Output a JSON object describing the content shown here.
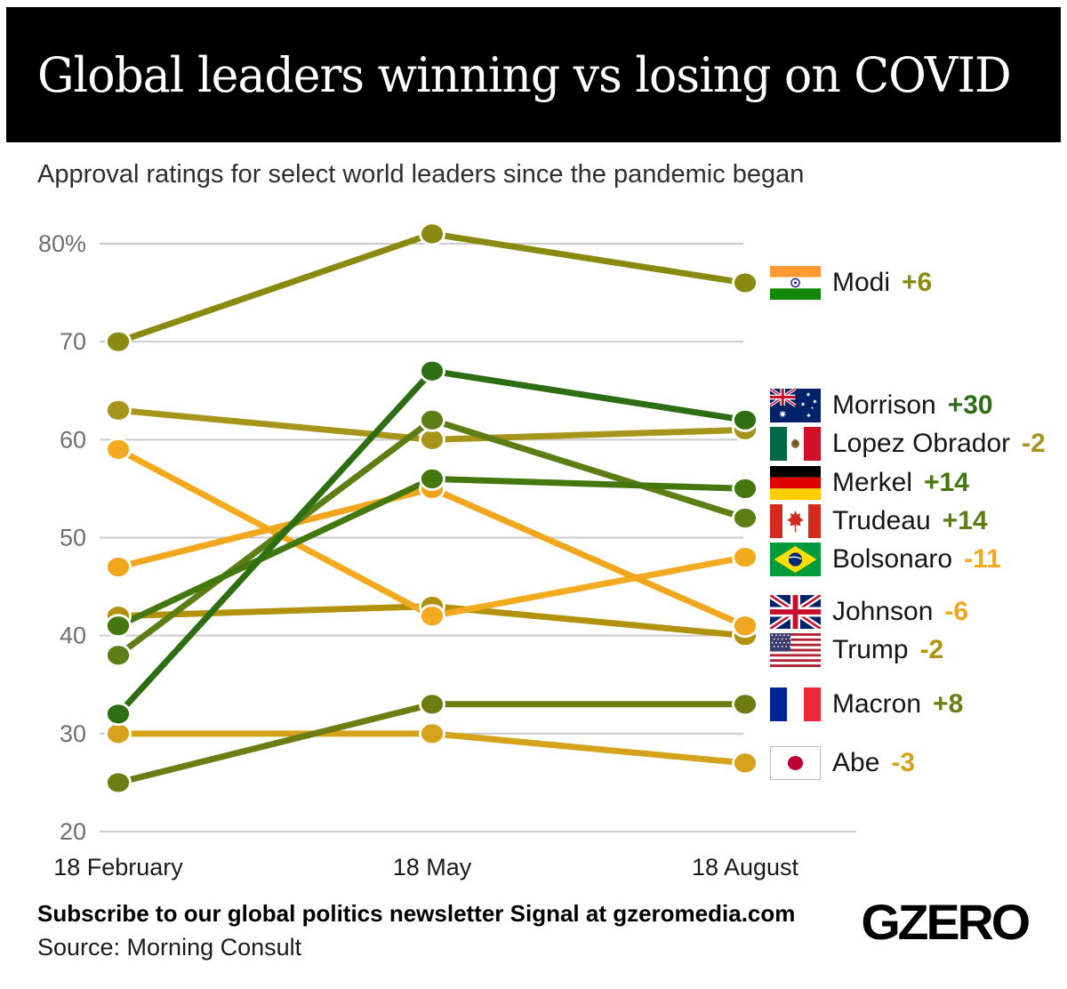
{
  "header": {
    "title": "Global leaders winning vs losing on COVID"
  },
  "subtitle": "Approval ratings for select world leaders since the pandemic began",
  "chart_data": {
    "type": "line",
    "title": "Global leaders winning vs losing on COVID",
    "subtitle": "Approval ratings for select world leaders since the pandemic began",
    "x": [
      "18 February",
      "18 May",
      "18 August"
    ],
    "ylim": [
      20,
      83
    ],
    "yticks": [
      80,
      70,
      60,
      50,
      40,
      30,
      20
    ],
    "ytick_labels": [
      "80%",
      "70",
      "60",
      "50",
      "40",
      "30",
      "20"
    ],
    "grid": true,
    "legend_position": "right",
    "series": [
      {
        "name": "Modi",
        "flag": "india",
        "values": [
          70,
          81,
          76
        ],
        "change": "+6",
        "color": "#8A8A10",
        "zorder": 6
      },
      {
        "name": "Morrison",
        "flag": "australia",
        "values": [
          32,
          67,
          62
        ],
        "change": "+30",
        "color": "#2D6E12",
        "zorder": 10
      },
      {
        "name": "Lopez Obrador",
        "flag": "mexico",
        "values": [
          63,
          60,
          61
        ],
        "change": "-2",
        "color": "#A6941B",
        "zorder": 2
      },
      {
        "name": "Merkel",
        "flag": "germany",
        "values": [
          41,
          56,
          55
        ],
        "change": "+14",
        "color": "#44770E",
        "zorder": 9
      },
      {
        "name": "Trudeau",
        "flag": "canada",
        "values": [
          38,
          62,
          52
        ],
        "change": "+14",
        "color": "#5C7E14",
        "zorder": 8
      },
      {
        "name": "Bolsonaro",
        "flag": "brazil",
        "values": [
          59,
          42,
          48
        ],
        "change": "-11",
        "color": "#F4AA1E",
        "zorder": 4
      },
      {
        "name": "Johnson",
        "flag": "uk",
        "values": [
          47,
          55,
          41
        ],
        "change": "-6",
        "color": "#F0A71D",
        "zorder": 5
      },
      {
        "name": "Trump",
        "flag": "usa",
        "values": [
          42,
          43,
          40
        ],
        "change": "-2",
        "color": "#B2920C",
        "zorder": 1
      },
      {
        "name": "Macron",
        "flag": "france",
        "values": [
          25,
          33,
          33
        ],
        "change": "+8",
        "color": "#6E7D11",
        "zorder": 7
      },
      {
        "name": "Abe",
        "flag": "japan",
        "values": [
          30,
          30,
          27
        ],
        "change": "-3",
        "color": "#D5A21B",
        "zorder": 3
      }
    ],
    "style": {
      "grid_color": "#CBCBCB",
      "ytick_color": "#6F6F6F",
      "xtick_color": "#1A1A1A"
    }
  },
  "footer": {
    "subscribe": "Subscribe to our global politics newsletter Signal at gzeromedia.com",
    "source": "Source: Morning Consult",
    "logo": "GZERO"
  }
}
